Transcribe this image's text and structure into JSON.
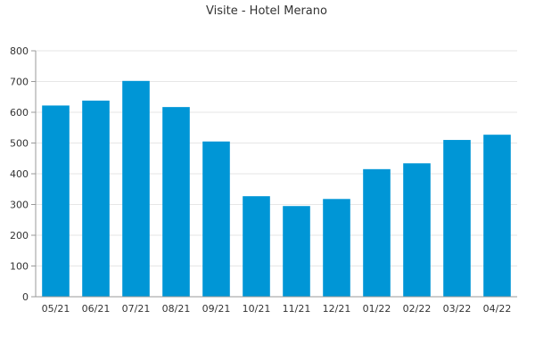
{
  "chart_data": {
    "type": "bar",
    "title": "Visite - Hotel Merano",
    "categories": [
      "05/21",
      "06/21",
      "07/21",
      "08/21",
      "09/21",
      "10/21",
      "11/21",
      "12/21",
      "01/22",
      "02/22",
      "03/22",
      "04/22"
    ],
    "values": [
      622,
      638,
      702,
      617,
      505,
      327,
      295,
      318,
      415,
      434,
      510,
      527
    ],
    "ylim": [
      0,
      800
    ],
    "yticks": [
      0,
      100,
      200,
      300,
      400,
      500,
      600,
      700,
      800
    ],
    "xlabel": "",
    "ylabel": "",
    "grid": true,
    "legend": "none",
    "colors": {
      "bar": "#0096d6",
      "grid": "#e6e6e6",
      "axis": "#999999"
    }
  }
}
